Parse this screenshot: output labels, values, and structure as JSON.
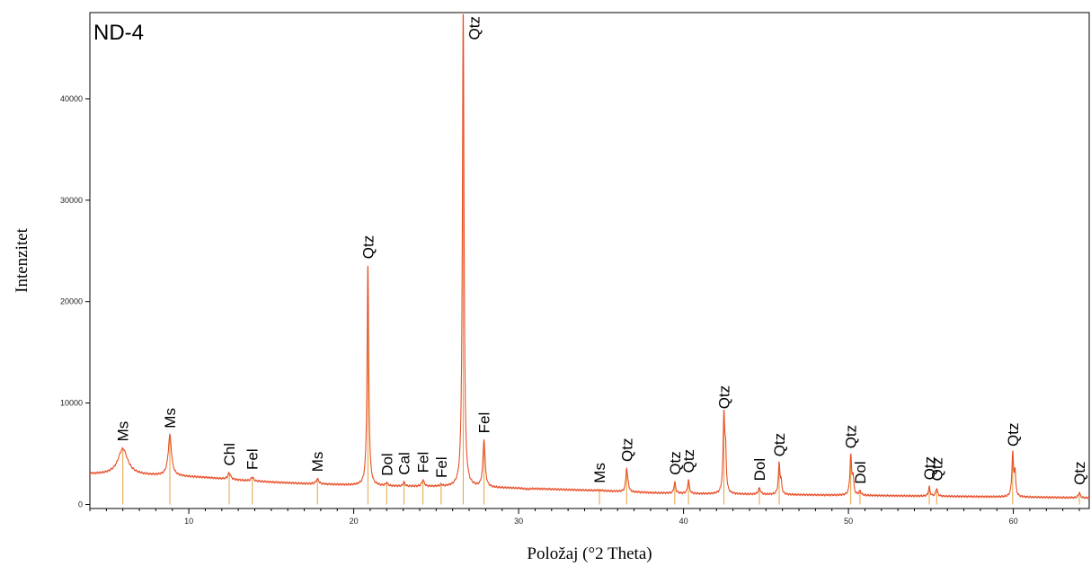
{
  "chart_data": {
    "type": "line",
    "title": "ND-4",
    "xlabel": "Položaj (°2 Theta)",
    "ylabel": "Intenzitet",
    "xlim": [
      4,
      64.6
    ],
    "ylim": [
      -400,
      48500
    ],
    "x_ticks": [
      10,
      20,
      30,
      40,
      50,
      60
    ],
    "y_ticks": [
      0,
      10000,
      20000,
      30000,
      40000
    ],
    "grid": false,
    "legend": "none",
    "line_color": "#e8502a",
    "stick_color": "#e6a23c",
    "background_points": [
      [
        4,
        3000
      ],
      [
        6,
        2950
      ],
      [
        9,
        2800
      ],
      [
        11,
        2650
      ],
      [
        13,
        2400
      ],
      [
        15,
        2200
      ],
      [
        17,
        2050
      ],
      [
        20,
        1900
      ],
      [
        22,
        1800
      ],
      [
        25,
        1750
      ],
      [
        28,
        1650
      ],
      [
        30,
        1600
      ],
      [
        32,
        1500
      ],
      [
        35,
        1350
      ],
      [
        38,
        1150
      ],
      [
        41,
        1050
      ],
      [
        44,
        1000
      ],
      [
        47,
        950
      ],
      [
        50,
        900
      ],
      [
        53,
        850
      ],
      [
        56,
        800
      ],
      [
        59,
        750
      ],
      [
        62,
        700
      ],
      [
        64.6,
        650
      ]
    ],
    "peaks": [
      {
        "x": 6.0,
        "y": 5500,
        "w": 0.35,
        "label": "Ms"
      },
      {
        "x": 8.85,
        "y": 6800,
        "w": 0.12,
        "label": "Ms"
      },
      {
        "x": 12.45,
        "y": 3100,
        "w": 0.1,
        "label": "Chl"
      },
      {
        "x": 13.85,
        "y": 2700,
        "w": 0.08,
        "label": "Fel"
      },
      {
        "x": 17.8,
        "y": 2500,
        "w": 0.1,
        "label": "Ms"
      },
      {
        "x": 20.86,
        "y": 23500,
        "w": 0.06,
        "label": "Qtz"
      },
      {
        "x": 22.0,
        "y": 2100,
        "w": 0.07,
        "label": "Dol"
      },
      {
        "x": 23.05,
        "y": 2200,
        "w": 0.06,
        "label": "Cal"
      },
      {
        "x": 24.2,
        "y": 2400,
        "w": 0.08,
        "label": "Fel"
      },
      {
        "x": 25.3,
        "y": 1900,
        "w": 0.07,
        "label": "Fel"
      },
      {
        "x": 26.64,
        "y": 48500,
        "w": 0.06,
        "label": "Qtz"
      },
      {
        "x": 27.9,
        "y": 6300,
        "w": 0.08,
        "label": "Fel"
      },
      {
        "x": 34.9,
        "y": 1400,
        "w": 0.2,
        "label": "Ms"
      },
      {
        "x": 36.55,
        "y": 3500,
        "w": 0.06,
        "label": "Qtz"
      },
      {
        "x": 39.47,
        "y": 2200,
        "w": 0.06,
        "label": "Qtz"
      },
      {
        "x": 40.3,
        "y": 2400,
        "w": 0.06,
        "label": "Qtz"
      },
      {
        "x": 42.45,
        "y": 8700,
        "w": 0.06,
        "label": "Qtz"
      },
      {
        "x": 44.6,
        "y": 1600,
        "w": 0.08,
        "label": "Dol"
      },
      {
        "x": 45.8,
        "y": 4000,
        "w": 0.06,
        "label": "Qtz"
      },
      {
        "x": 50.14,
        "y": 4800,
        "w": 0.06,
        "label": "Qtz"
      },
      {
        "x": 50.7,
        "y": 1300,
        "w": 0.07,
        "label": "Dol"
      },
      {
        "x": 54.9,
        "y": 1700,
        "w": 0.06,
        "label": "Qtz"
      },
      {
        "x": 55.35,
        "y": 1600,
        "w": 0.06,
        "label": "Qtz"
      },
      {
        "x": 59.96,
        "y": 5000,
        "w": 0.06,
        "label": "Qtz"
      },
      {
        "x": 64.0,
        "y": 1200,
        "w": 0.06,
        "label": "Qtz"
      }
    ],
    "extra_peaks": [
      {
        "x": 42.55,
        "y": 4500,
        "w": 0.05
      },
      {
        "x": 45.92,
        "y": 2000,
        "w": 0.05
      },
      {
        "x": 50.28,
        "y": 2600,
        "w": 0.05
      },
      {
        "x": 60.1,
        "y": 3000,
        "w": 0.05
      },
      {
        "x": 36.65,
        "y": 1700,
        "w": 0.05
      },
      {
        "x": 19.8,
        "y": 1900,
        "w": 0.15
      },
      {
        "x": 30.5,
        "y": 1500,
        "w": 0.2
      }
    ]
  }
}
